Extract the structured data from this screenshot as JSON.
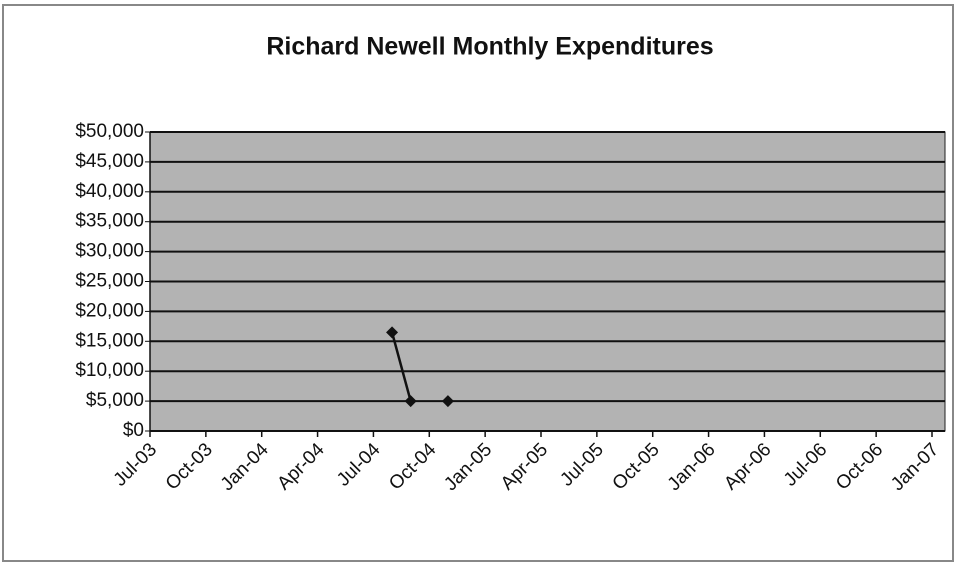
{
  "chart_data": {
    "type": "line",
    "title": "Richard Newell Monthly Expenditures",
    "x": [
      "Aug-04",
      "Sep-04",
      "Oct-04",
      "Nov-04"
    ],
    "series": [
      {
        "name": "Expenditures",
        "color": "#111111",
        "values": [
          16500,
          5000,
          null,
          5000
        ]
      }
    ],
    "xlim": [
      "Jul-03",
      "Jan-07"
    ],
    "xticks": [
      "Jul-03",
      "Oct-03",
      "Jan-04",
      "Apr-04",
      "Jul-04",
      "Oct-04",
      "Jan-05",
      "Apr-05",
      "Jul-05",
      "Oct-05",
      "Jan-06",
      "Apr-06",
      "Jul-06",
      "Oct-06",
      "Jan-07"
    ],
    "ylim": [
      0,
      50000
    ],
    "yticks": [
      {
        "value": 0,
        "label": "$0"
      },
      {
        "value": 5000,
        "label": "$5,000"
      },
      {
        "value": 10000,
        "label": "$10,000"
      },
      {
        "value": 15000,
        "label": "$15,000"
      },
      {
        "value": 20000,
        "label": "$20,000"
      },
      {
        "value": 25000,
        "label": "$25,000"
      },
      {
        "value": 30000,
        "label": "$30,000"
      },
      {
        "value": 35000,
        "label": "$35,000"
      },
      {
        "value": 40000,
        "label": "$40,000"
      },
      {
        "value": 45000,
        "label": "$45,000"
      },
      {
        "value": 50000,
        "label": "$50,000"
      }
    ],
    "grid": true,
    "plot_background": "#b3b3b3"
  }
}
